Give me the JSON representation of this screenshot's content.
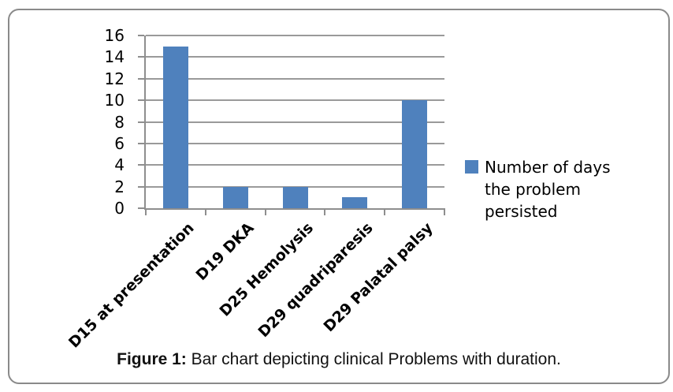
{
  "figure": {
    "caption_label": "Figure 1:",
    "caption_text": "Bar chart depicting clinical Problems with duration."
  },
  "chart_data": {
    "type": "bar",
    "title": "",
    "xlabel": "",
    "ylabel": "",
    "categories": [
      "D15 at presentation",
      "D19 DKA",
      "D25 Hemolysis",
      "D29 quadriparesis",
      "D29 Palatal palsy"
    ],
    "values": [
      15,
      2,
      2,
      1,
      10
    ],
    "series_name": "Number of days the problem persisted",
    "ylim": [
      0,
      16
    ],
    "ytick_step": 2,
    "ytick_labels": [
      "0",
      "2",
      "4",
      "6",
      "8",
      "10",
      "12",
      "14",
      "16"
    ],
    "grid": true,
    "legend_position": "right",
    "bar_color": "#4F81BD",
    "gridline_color": "#9a9a9a",
    "axis_color": "#8e8e8e",
    "frame_border_color": "#8a8a8a",
    "text_color": "#000000"
  }
}
